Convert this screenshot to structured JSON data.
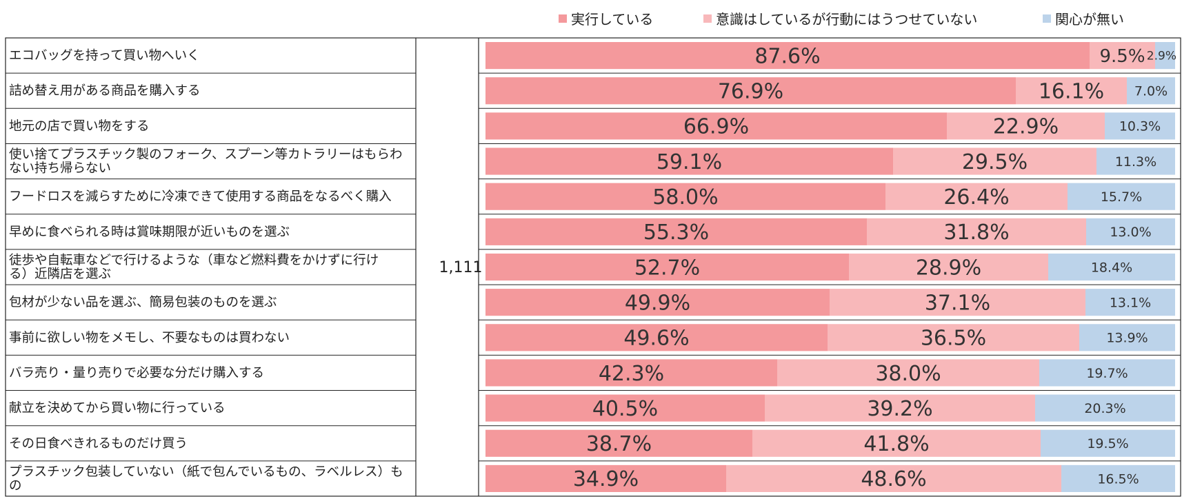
{
  "chart_data": {
    "type": "bar",
    "orientation": "horizontal",
    "stacked": true,
    "normalized_percent": true,
    "title": "",
    "n_label": "1,111",
    "categories": [
      "エコバッグを持って買い物へいく",
      "詰め替え用がある商品を購入する",
      "地元の店で買い物をする",
      "使い捨てプラスチック製のフォーク、スプーン等カトラリーはもらわない持ち帰らない",
      "フードロスを減らすために冷凍できて使用する商品をなるべく購入",
      "早めに食べられる時は賞味期限が近いものを選ぶ",
      "徒歩や自転車などで行けるような（車など燃料費をかけずに行ける）近隣店を選ぶ",
      "包材が少ない品を選ぶ、簡易包装のものを選ぶ",
      "事前に欲しい物をメモし、不要なものは買わない",
      "バラ売り・量り売りで必要な分だけ購入する",
      "献立を決めてから買い物に行っている",
      "その日食べきれるものだけ買う",
      "プラスチック包装していない（紙で包んでいるもの、ラベルレス）もの"
    ],
    "category_lines": [
      [
        "エコバッグを持って買い物へいく"
      ],
      [
        "詰め替え用がある商品を購入する"
      ],
      [
        "地元の店で買い物をする"
      ],
      [
        "使い捨てプラスチック製のフォーク、スプーン等カトラリーはもらわ",
        "ない持ち帰らない"
      ],
      [
        "フードロスを減らすために冷凍できて使用する商品をなるべく購入"
      ],
      [
        "早めに食べられる時は賞味期限が近いものを選ぶ"
      ],
      [
        "徒歩や自転車などで行けるような（車など燃料費をかけずに行け",
        "る）近隣店を選ぶ"
      ],
      [
        "包材が少ない品を選ぶ、簡易包装のものを選ぶ"
      ],
      [
        "事前に欲しい物をメモし、不要なものは買わない"
      ],
      [
        "バラ売り・量り売りで必要な分だけ購入する"
      ],
      [
        "献立を決めてから買い物に行っている"
      ],
      [
        "その日食べきれるものだけ買う"
      ],
      [
        "プラスチック包装していない（紙で包んでいるもの、ラベルレス）も",
        "の"
      ]
    ],
    "series": [
      {
        "name": "実行している",
        "color": "#f4999c",
        "values": [
          87.6,
          76.9,
          66.9,
          59.1,
          58.0,
          55.3,
          52.7,
          49.9,
          49.6,
          42.3,
          40.5,
          38.7,
          34.9
        ],
        "labels": [
          "87.6%",
          "76.9%",
          "66.9%",
          "59.1%",
          "58.0%",
          "55.3%",
          "52.7%",
          "49.9%",
          "49.6%",
          "42.3%",
          "40.5%",
          "38.7%",
          "34.9%"
        ]
      },
      {
        "name": "意識はしているが行動にはうつせていない",
        "color": "#f8b8ba",
        "values": [
          9.5,
          16.1,
          22.9,
          29.5,
          26.4,
          31.8,
          28.9,
          37.1,
          36.5,
          38.0,
          39.2,
          41.8,
          48.6
        ],
        "labels": [
          "9.5%",
          "16.1%",
          "22.9%",
          "29.5%",
          "26.4%",
          "31.8%",
          "28.9%",
          "37.1%",
          "36.5%",
          "38.0%",
          "39.2%",
          "41.8%",
          "48.6%"
        ]
      },
      {
        "name": "関心が無い",
        "color": "#bcd3ea",
        "values": [
          2.9,
          7.0,
          10.3,
          11.3,
          15.7,
          13.0,
          18.4,
          13.1,
          13.9,
          19.7,
          20.3,
          19.5,
          16.5
        ],
        "labels": [
          "2.9%",
          "7.0%",
          "10.3%",
          "11.3%",
          "15.7%",
          "13.0%",
          "18.4%",
          "13.1%",
          "13.9%",
          "19.7%",
          "20.3%",
          "19.5%",
          "16.5%"
        ]
      }
    ],
    "xlim": [
      0,
      100
    ],
    "legend_position": "top-right"
  }
}
